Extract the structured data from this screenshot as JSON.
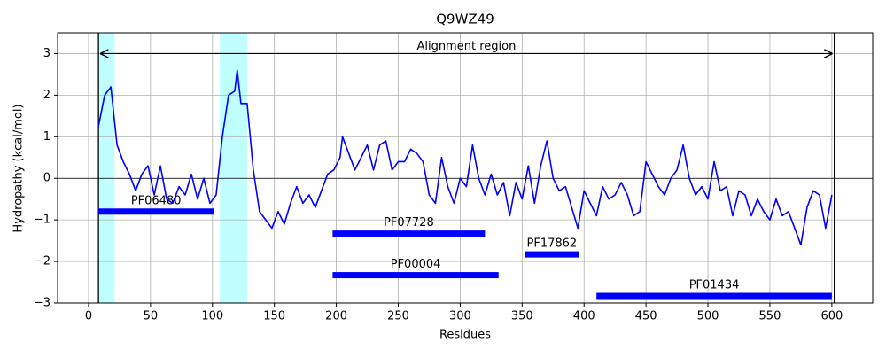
{
  "chart_data": {
    "type": "line",
    "title": "Q9WZ49",
    "xlabel": "Residues",
    "ylabel": "Hydropathy (kcal/mol)",
    "x": [
      8,
      13,
      18,
      23,
      28,
      33,
      38,
      43,
      48,
      53,
      58,
      63,
      68,
      73,
      78,
      83,
      88,
      93,
      98,
      103,
      108,
      113,
      118,
      120,
      123,
      128,
      133,
      138,
      143,
      148,
      153,
      158,
      163,
      168,
      173,
      178,
      183,
      188,
      193,
      198,
      203,
      205,
      210,
      215,
      220,
      225,
      230,
      235,
      240,
      245,
      250,
      255,
      260,
      265,
      270,
      275,
      280,
      285,
      290,
      295,
      300,
      305,
      310,
      315,
      320,
      325,
      330,
      335,
      340,
      345,
      350,
      355,
      360,
      365,
      370,
      375,
      380,
      385,
      390,
      395,
      400,
      405,
      410,
      415,
      420,
      425,
      430,
      435,
      440,
      445,
      450,
      455,
      460,
      465,
      470,
      475,
      480,
      485,
      490,
      495,
      500,
      505,
      510,
      515,
      520,
      525,
      530,
      535,
      540,
      545,
      550,
      555,
      560,
      565,
      570,
      575,
      580,
      585,
      590,
      595,
      600
    ],
    "series": [
      {
        "name": "Hydropathy",
        "color": "#0000ff",
        "values": [
          1.25,
          2.0,
          2.2,
          0.8,
          0.4,
          0.1,
          -0.3,
          0.1,
          0.3,
          -0.4,
          0.3,
          -0.5,
          -0.6,
          -0.2,
          -0.4,
          0.1,
          -0.5,
          0.0,
          -0.6,
          -0.4,
          1.0,
          2.0,
          2.1,
          2.6,
          1.8,
          1.8,
          0.2,
          -0.8,
          -1.0,
          -1.2,
          -0.8,
          -1.1,
          -0.6,
          -0.2,
          -0.6,
          -0.4,
          -0.7,
          -0.3,
          0.1,
          0.2,
          0.5,
          1.0,
          0.6,
          0.2,
          0.5,
          0.8,
          0.2,
          0.8,
          0.9,
          0.2,
          0.4,
          0.4,
          0.7,
          0.6,
          0.4,
          -0.4,
          -0.6,
          0.5,
          -0.2,
          -0.6,
          0.0,
          -0.2,
          0.8,
          0.0,
          -0.4,
          0.1,
          -0.4,
          -0.1,
          -0.9,
          -0.1,
          -0.5,
          0.3,
          -0.6,
          0.3,
          0.9,
          0.0,
          -0.3,
          -0.2,
          -0.7,
          -1.2,
          -0.3,
          -0.6,
          -0.9,
          -0.2,
          -0.5,
          -0.4,
          -0.1,
          -0.4,
          -0.9,
          -0.8,
          0.4,
          0.1,
          -0.2,
          -0.4,
          0.0,
          0.2,
          0.8,
          0.0,
          -0.4,
          -0.2,
          -0.5,
          0.4,
          -0.3,
          -0.2,
          -0.9,
          -0.3,
          -0.4,
          -0.9,
          -0.5,
          -0.8,
          -1.0,
          -0.5,
          -0.9,
          -0.8,
          -1.2,
          -1.6,
          -0.7,
          -0.3,
          -0.4,
          -1.2,
          -0.4
        ]
      }
    ],
    "xlim": [
      -25,
      633
    ],
    "ylim": [
      -3,
      3.5
    ],
    "xticks": [
      0,
      50,
      100,
      150,
      200,
      250,
      300,
      350,
      400,
      450,
      500,
      550,
      600
    ],
    "yticks": [
      {
        "value": -3,
        "label": "−3"
      },
      {
        "value": -2,
        "label": "−2"
      },
      {
        "value": -1,
        "label": "−1"
      },
      0,
      1,
      2,
      3
    ],
    "grid": true,
    "zero_line": 0,
    "regions": [
      {
        "start": 8,
        "end": 21,
        "color": "#bfffff"
      },
      {
        "start": 106,
        "end": 128,
        "color": "#bfffff"
      }
    ],
    "alignment": {
      "label": "Alignment region",
      "start": 8,
      "end": 602,
      "y": 3
    },
    "domains": [
      {
        "name": "PF06480",
        "start": 8,
        "end": 101,
        "y": -0.8
      },
      {
        "name": "PF07728",
        "start": 197,
        "end": 320,
        "y": -1.33
      },
      {
        "name": "PF17862",
        "start": 352,
        "end": 396,
        "y": -1.83
      },
      {
        "name": "PF00004",
        "start": 197,
        "end": 331,
        "y": -2.33
      },
      {
        "name": "PF01434",
        "start": 410,
        "end": 600,
        "y": -2.83
      }
    ],
    "domain_color": "#0000ff"
  }
}
